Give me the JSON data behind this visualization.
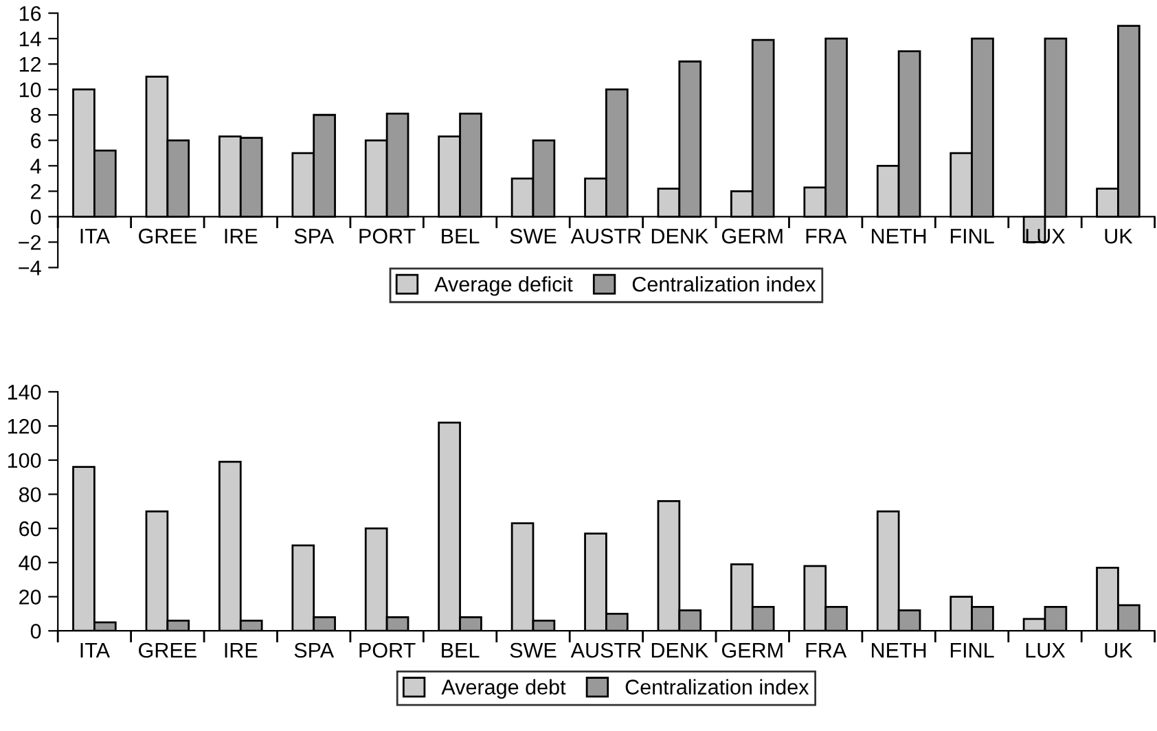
{
  "chart_data": [
    {
      "type": "bar",
      "categories": [
        "ITA",
        "GREE",
        "IRE",
        "SPA",
        "PORT",
        "BEL",
        "SWE",
        "AUSTR",
        "DENK",
        "GERM",
        "FRA",
        "NETH",
        "FINL",
        "LUX",
        "UK"
      ],
      "series": [
        {
          "name": "Average deficit",
          "color": "#cccccc",
          "values": [
            10,
            11,
            6.3,
            5,
            6,
            6.3,
            3,
            3,
            2.2,
            2,
            2.3,
            4,
            5,
            -2,
            2.2
          ]
        },
        {
          "name": "Centralization index",
          "color": "#999999",
          "values": [
            5.2,
            6,
            6.2,
            8,
            8.1,
            8.1,
            6,
            10,
            12.2,
            13.9,
            14,
            13,
            14,
            14,
            15
          ]
        }
      ],
      "ylim": [
        -4,
        16
      ],
      "yticks": [
        {
          "value": -4,
          "label": "−4"
        },
        {
          "value": -2,
          "label": "−2"
        },
        0,
        2,
        4,
        6,
        8,
        10,
        12,
        14,
        16
      ],
      "grid": false,
      "legend": "bottom"
    },
    {
      "type": "bar",
      "categories": [
        "ITA",
        "GREE",
        "IRE",
        "SPA",
        "PORT",
        "BEL",
        "SWE",
        "AUSTR",
        "DENK",
        "GERM",
        "FRA",
        "NETH",
        "FINL",
        "LUX",
        "UK"
      ],
      "series": [
        {
          "name": "Average debt",
          "color": "#cccccc",
          "values": [
            96,
            70,
            99,
            50,
            60,
            122,
            63,
            57,
            76,
            39,
            38,
            70,
            20,
            7,
            37
          ]
        },
        {
          "name": "Centralization index",
          "color": "#999999",
          "values": [
            5,
            6,
            6,
            8,
            8,
            8,
            6,
            10,
            12,
            14,
            14,
            12,
            14,
            14,
            15
          ]
        }
      ],
      "ylim": [
        0,
        140
      ],
      "yticks": [
        0,
        20,
        40,
        60,
        80,
        100,
        120,
        140
      ],
      "grid": false,
      "legend": "bottom"
    }
  ]
}
